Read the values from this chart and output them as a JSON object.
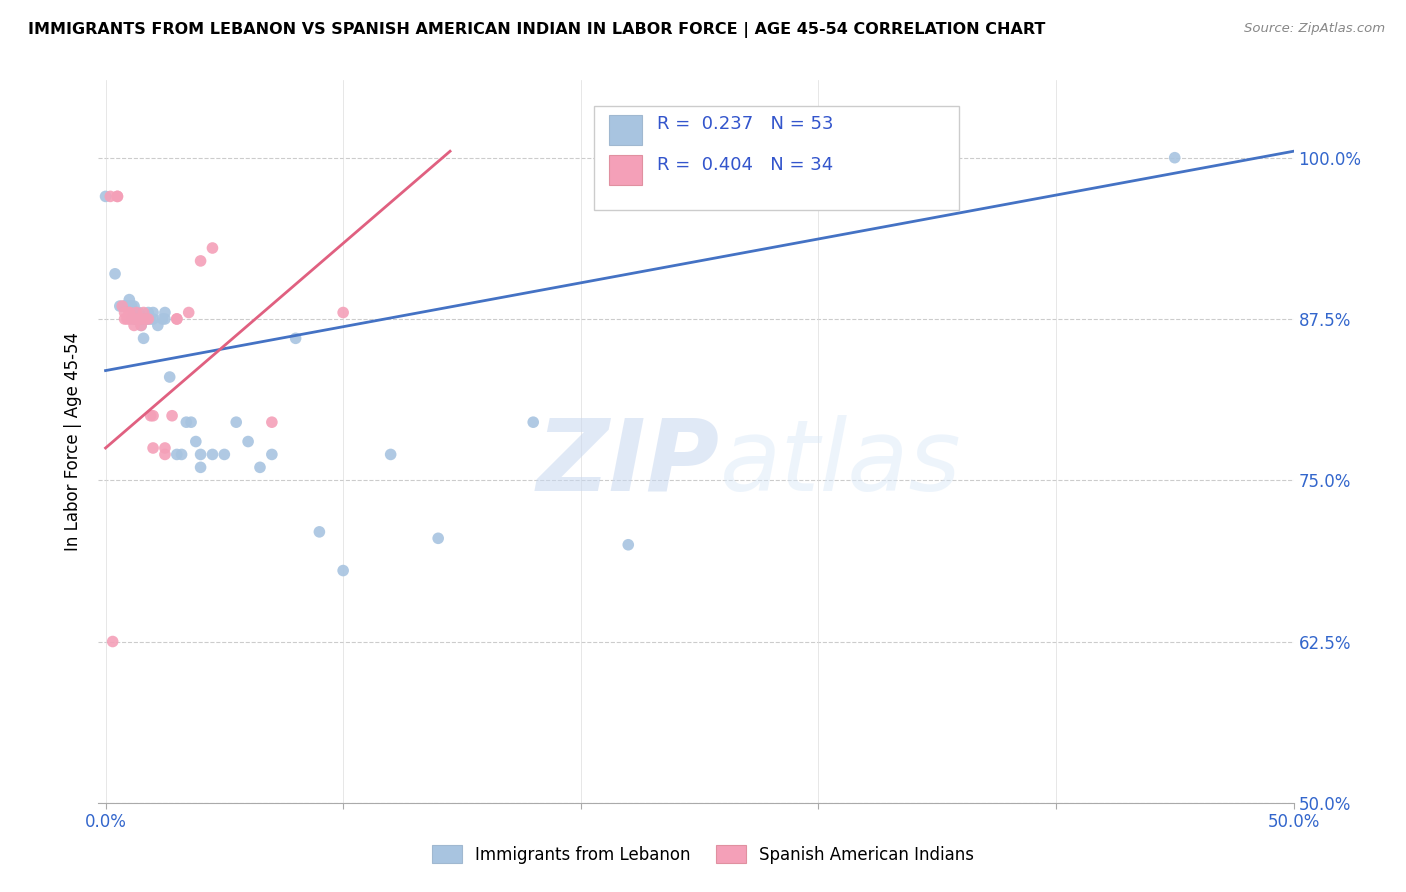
{
  "title": "IMMIGRANTS FROM LEBANON VS SPANISH AMERICAN INDIAN IN LABOR FORCE | AGE 45-54 CORRELATION CHART",
  "source": "Source: ZipAtlas.com",
  "ylabel": "In Labor Force | Age 45-54",
  "legend_r_blue": "R =  0.237",
  "legend_n_blue": "N = 53",
  "legend_r_pink": "R =  0.404",
  "legend_n_pink": "N = 34",
  "blue_color": "#a8c4e0",
  "pink_color": "#f4a0b8",
  "blue_line_color": "#4472c4",
  "pink_line_color": "#e06080",
  "watermark_zip": "ZIP",
  "watermark_atlas": "atlas",
  "blue_scatter_x": [
    0.0,
    0.004,
    0.006,
    0.008,
    0.008,
    0.009,
    0.01,
    0.01,
    0.011,
    0.011,
    0.012,
    0.012,
    0.013,
    0.013,
    0.014,
    0.014,
    0.015,
    0.015,
    0.016,
    0.016,
    0.017,
    0.017,
    0.018,
    0.018,
    0.019,
    0.02,
    0.02,
    0.022,
    0.024,
    0.025,
    0.025,
    0.027,
    0.03,
    0.032,
    0.034,
    0.036,
    0.038,
    0.04,
    0.04,
    0.045,
    0.05,
    0.055,
    0.06,
    0.065,
    0.07,
    0.08,
    0.09,
    0.1,
    0.12,
    0.14,
    0.18,
    0.22,
    0.45
  ],
  "blue_scatter_y": [
    0.97,
    0.91,
    0.885,
    0.885,
    0.885,
    0.885,
    0.89,
    0.885,
    0.885,
    0.875,
    0.885,
    0.88,
    0.875,
    0.875,
    0.88,
    0.875,
    0.87,
    0.875,
    0.875,
    0.86,
    0.875,
    0.875,
    0.88,
    0.875,
    0.875,
    0.88,
    0.875,
    0.87,
    0.875,
    0.88,
    0.875,
    0.83,
    0.77,
    0.77,
    0.795,
    0.795,
    0.78,
    0.76,
    0.77,
    0.77,
    0.77,
    0.795,
    0.78,
    0.76,
    0.77,
    0.86,
    0.71,
    0.68,
    0.77,
    0.705,
    0.795,
    0.7,
    1.0
  ],
  "pink_scatter_x": [
    0.002,
    0.003,
    0.005,
    0.005,
    0.007,
    0.008,
    0.008,
    0.009,
    0.01,
    0.01,
    0.01,
    0.012,
    0.012,
    0.013,
    0.013,
    0.014,
    0.015,
    0.015,
    0.016,
    0.017,
    0.018,
    0.019,
    0.02,
    0.02,
    0.025,
    0.025,
    0.028,
    0.03,
    0.03,
    0.035,
    0.04,
    0.045,
    0.07,
    0.1
  ],
  "pink_scatter_y": [
    0.97,
    0.625,
    0.97,
    0.97,
    0.885,
    0.88,
    0.875,
    0.875,
    0.88,
    0.875,
    0.88,
    0.875,
    0.87,
    0.875,
    0.88,
    0.875,
    0.87,
    0.875,
    0.88,
    0.875,
    0.875,
    0.8,
    0.8,
    0.775,
    0.775,
    0.77,
    0.8,
    0.875,
    0.875,
    0.88,
    0.92,
    0.93,
    0.795,
    0.88
  ],
  "blue_trendline_x": [
    0.0,
    0.5
  ],
  "blue_trendline_y": [
    0.835,
    1.005
  ],
  "pink_trendline_x": [
    0.0,
    0.145
  ],
  "pink_trendline_y": [
    0.775,
    1.005
  ],
  "xlim": [
    -0.003,
    0.5
  ],
  "ylim": [
    0.5,
    1.06
  ],
  "x_tick_positions": [
    0.0,
    0.1,
    0.2,
    0.3,
    0.4,
    0.5
  ],
  "x_tick_labels": [
    "0.0%",
    "",
    "",
    "",
    "",
    "50.0%"
  ],
  "y_tick_positions": [
    0.5,
    0.625,
    0.75,
    0.875,
    1.0
  ],
  "y_tick_labels": [
    "50.0%",
    "62.5%",
    "75.0%",
    "87.5%",
    "100.0%"
  ]
}
